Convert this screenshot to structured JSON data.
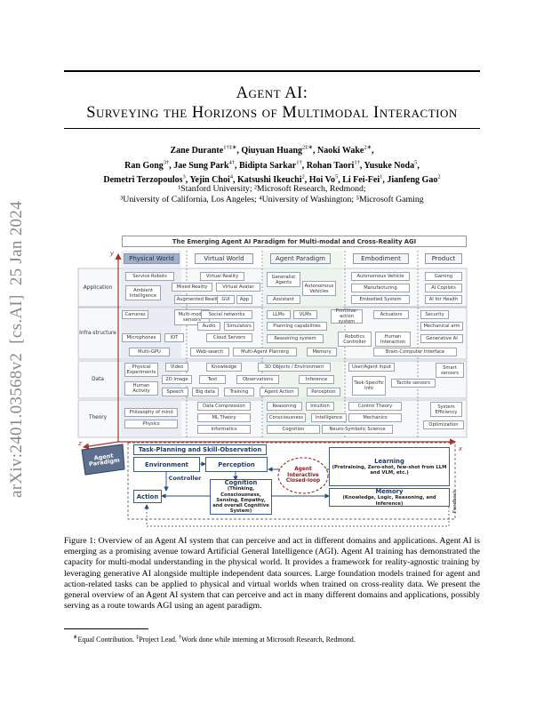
{
  "arxiv_stamp": "arXiv:2401.03568v2  [cs.AI]  25 Jan 2024",
  "title": {
    "line1": "Agent AI:",
    "line2": "Surveying the Horizons of Multimodal Interaction"
  },
  "authors": [
    [
      {
        "name": "Zane Durante",
        "sup": "1†‡∗",
        "after": ","
      },
      {
        "name": "Qiuyuan Huang",
        "sup": "2‡∗",
        "after": ","
      },
      {
        "name": "Naoki Wake",
        "sup": "2∗",
        "after": ","
      }
    ],
    [
      {
        "name": "Ran Gong",
        "sup": "3†",
        "after": ","
      },
      {
        "name": "Jae Sung Park",
        "sup": "4†",
        "after": ","
      },
      {
        "name": "Bidipta Sarkar",
        "sup": "1†",
        "after": ","
      },
      {
        "name": "Rohan Taori",
        "sup": "1†",
        "after": ","
      },
      {
        "name": "Yusuke Noda",
        "sup": "5",
        "after": ","
      }
    ],
    [
      {
        "name": "Demetri Terzopoulos",
        "sup": "3",
        "after": ","
      },
      {
        "name": "Yejin Choi",
        "sup": "4",
        "after": ","
      },
      {
        "name": "Katsushi Ikeuchi",
        "sup": "2",
        "after": ","
      },
      {
        "name": "Hoi Vo",
        "sup": "5",
        "after": ","
      },
      {
        "name": "Li Fei-Fei",
        "sup": "1",
        "after": ","
      },
      {
        "name": "Jianfeng Gao",
        "sup": "2",
        "after": ""
      }
    ]
  ],
  "affiliations": [
    "¹Stanford University; ²Microsoft Research, Redmond;",
    "³University of California, Los Angeles; ⁴University of Washington; ⁵Microsoft Gaming"
  ],
  "figure": {
    "header": "The Emerging Agent AI Paradigm for Multi-modal and Cross-Reality AGI",
    "axes": {
      "x": "x",
      "y": "y",
      "z": "z"
    },
    "columns": [
      "Physical World",
      "Virtual World",
      "Agent Paradigm",
      "Embodiment",
      "Product"
    ],
    "rows": [
      "Application",
      "Infra-structure",
      "Data",
      "Theory"
    ],
    "cells": [
      "Service Robots",
      "Ambient Intelligence",
      "Mixed Reality",
      "Augmented Reality",
      "Virtual Reality",
      "Virtual Avatar",
      "GUI",
      "App",
      "Generalist Agents",
      "Autonomous Vehicles",
      "Assistant",
      "Autonomous Vehicle",
      "Manufacturing",
      "Embodied System",
      "Gaming",
      "AI Copilots",
      "AI for Health",
      "Cameras",
      "Multi-modal sensors",
      "Social networks",
      "LLMs",
      "VLMs",
      "Primitive-action system",
      "Actuators",
      "Security",
      "Audio",
      "Simulators",
      "Planning capabilities",
      "Mechanical arm",
      "Microphones",
      "IOT",
      "Cloud Servers",
      "Reasoning system",
      "Robotics Controller",
      "Human Interaction",
      "Generative AI",
      "Multi-GPU",
      "Web-search",
      "Multi-Agent Planning",
      "Memory",
      "Brain-Computer Interface",
      "Physical Experiments",
      "Video",
      "Knowledge",
      "3D Objects / Environment",
      "User/Agent Input",
      "Smart sensors",
      "2D Image",
      "Text",
      "Observations",
      "Inference",
      "Task-Specific Info",
      "Tactile sensors",
      "Human Activity",
      "Speech",
      "Big data",
      "Training",
      "Agent Action",
      "Perception",
      "Data Compression",
      "Reasoning",
      "Intuition",
      "Control Theory",
      "System Efficiency",
      "Philosophy of mind",
      "ML Theory",
      "Consciousness",
      "Intelligence",
      "Mechanics",
      "Physics",
      "Informatics",
      "Cognition",
      "Neuro-Symbolic Science",
      "Optimization"
    ],
    "loop": {
      "tag": "Agent Paradigm",
      "task": "Task-Planning and Skill-Observation",
      "environment": "Environment",
      "perception": "Perception",
      "controller": "Controller",
      "action": "Action",
      "cognition": "Cognition",
      "cognition_desc": "(Thinking, Consciousness, Sensing, Empathy, and overall Cognitive System)",
      "closed_loop": "Agent Interactive Closed-loop",
      "learning": "Learning",
      "learning_desc": "(Pretraining, Zero-shot, few-shot from LLM and VLM, etc.)",
      "memory": "Memory",
      "memory_desc": "(Knowledge, Logic, Reasoning, and Inference)",
      "feedback": "Feedback"
    }
  },
  "caption": "Figure 1: Overview of an Agent AI system that can perceive and act in different domains and applications. Agent AI is emerging as a promising avenue toward Artificial General Intelligence (AGI). Agent AI training has demonstrated the capacity for multi-modal understanding in the physical world. It provides a framework for reality-agnostic training by leveraging generative AI alongside multiple independent data sources. Large foundation models trained for agent and action-related tasks can be applied to physical and virtual worlds when trained on cross-reality data. We present the general overview of an Agent AI system that can perceive and act in many different domains and applications, possibly serving as a route towards AGI using an agent paradigm.",
  "footnote": [
    {
      "sup": "∗",
      "text": "Equal Contribution."
    },
    {
      "sup": "‡",
      "text": "Project Lead."
    },
    {
      "sup": "†",
      "text": "Work done while interning at Microsoft Research, Redmond."
    }
  ]
}
